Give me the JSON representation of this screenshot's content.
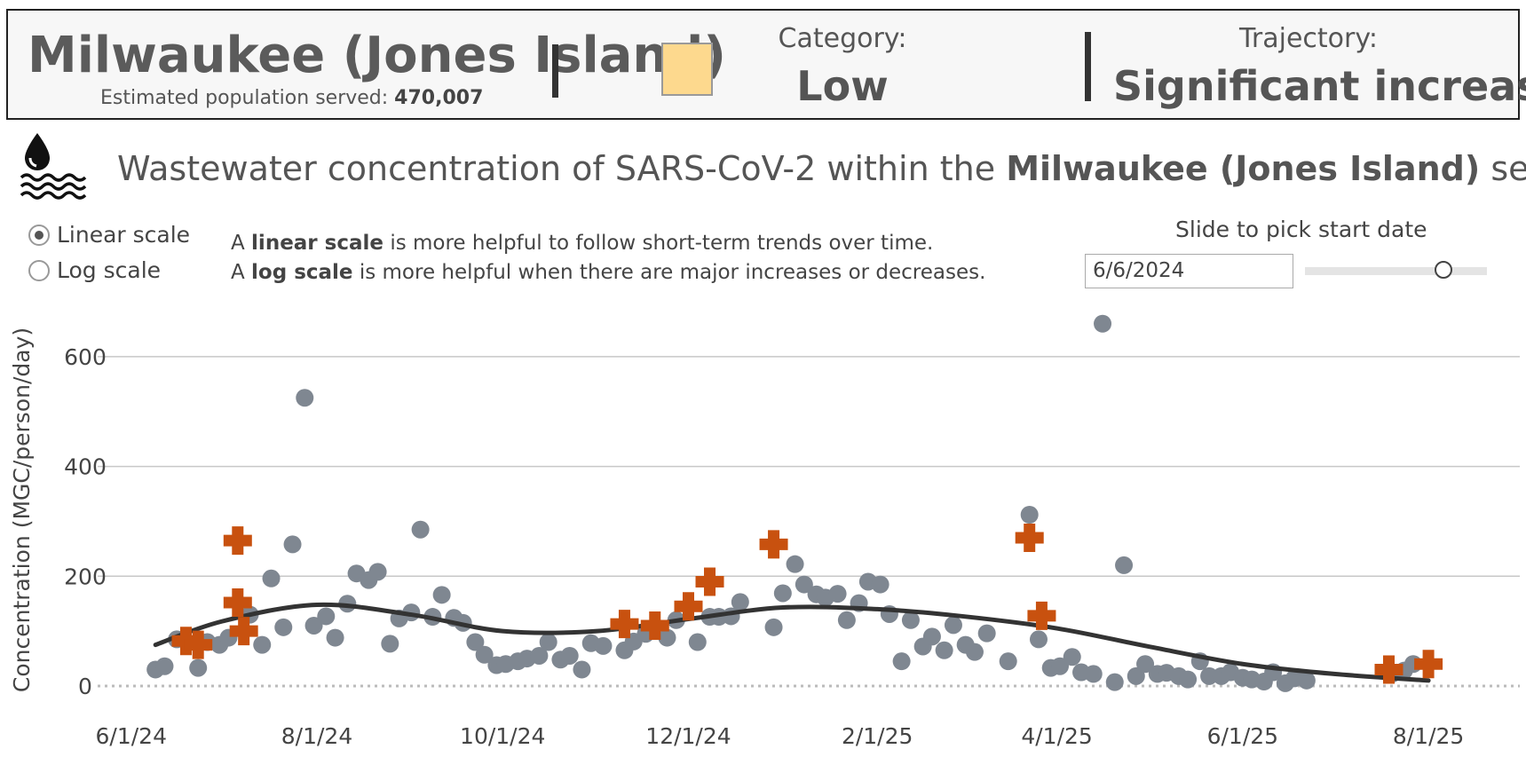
{
  "header": {
    "site_name": "Milwaukee (Jones Island)",
    "population_label": "Estimated population served:",
    "population_value": "470,007",
    "category_label": "Category:",
    "category_value": "Low",
    "category_color": "#fdd98e",
    "trajectory_label": "Trajectory:",
    "trajectory_value": "Significant increase"
  },
  "title": {
    "icon": "wastewater-drop-icon",
    "prefix": "Wastewater concentration of SARS-CoV-2 within the",
    "site": "Milwaukee (Jones Island)",
    "suffix": "sewershed"
  },
  "scale_options": {
    "linear_label": "Linear scale",
    "log_label": "Log scale",
    "selected": "linear"
  },
  "scale_help": {
    "linear_pre": "A",
    "linear_bold": "linear scale",
    "linear_post": "is more helpful to follow short-term trends over time.",
    "log_pre": "A",
    "log_bold": "log scale",
    "log_post": "is more helpful when there are major increases or decreases."
  },
  "date_picker": {
    "label": "Slide to pick start date",
    "value": "6/6/2024",
    "slider_position": 0.76
  },
  "colors": {
    "point": "#7f8791",
    "outlier": "#c8510f",
    "trend": "#333333",
    "grid": "#c8c8c8"
  },
  "chart_data": {
    "type": "scatter",
    "ylabel": "Concentration (MGC/person/day)",
    "ylim": [
      0,
      700
    ],
    "yticks": [
      0,
      200,
      400,
      600
    ],
    "xlim": [
      "2024-05-21",
      "2025-08-31"
    ],
    "xticks": [
      {
        "date": "2024-06-01",
        "label": "6/1/24"
      },
      {
        "date": "2024-08-01",
        "label": "8/1/24"
      },
      {
        "date": "2024-10-01",
        "label": "10/1/24"
      },
      {
        "date": "2024-12-01",
        "label": "12/1/24"
      },
      {
        "date": "2025-02-01",
        "label": "2/1/25"
      },
      {
        "date": "2025-04-01",
        "label": "4/1/25"
      },
      {
        "date": "2025-06-01",
        "label": "6/1/25"
      },
      {
        "date": "2025-08-01",
        "label": "8/1/25"
      }
    ],
    "series": [
      {
        "marker": "circle",
        "points": [
          [
            "2024-06-09",
            30
          ],
          [
            "2024-06-12",
            36
          ],
          [
            "2024-06-16",
            85
          ],
          [
            "2024-06-23",
            33
          ],
          [
            "2024-06-26",
            80
          ],
          [
            "2024-06-30",
            75
          ],
          [
            "2024-07-03",
            88
          ],
          [
            "2024-07-10",
            130
          ],
          [
            "2024-07-14",
            75
          ],
          [
            "2024-07-17",
            196
          ],
          [
            "2024-07-21",
            107
          ],
          [
            "2024-07-24",
            258
          ],
          [
            "2024-07-28",
            525
          ],
          [
            "2024-07-31",
            110
          ],
          [
            "2024-08-04",
            127
          ],
          [
            "2024-08-07",
            88
          ],
          [
            "2024-08-11",
            150
          ],
          [
            "2024-08-14",
            205
          ],
          [
            "2024-08-18",
            193
          ],
          [
            "2024-08-21",
            208
          ],
          [
            "2024-08-25",
            77
          ],
          [
            "2024-08-28",
            123
          ],
          [
            "2024-09-01",
            134
          ],
          [
            "2024-09-04",
            285
          ],
          [
            "2024-09-08",
            126
          ],
          [
            "2024-09-11",
            166
          ],
          [
            "2024-09-15",
            124
          ],
          [
            "2024-09-18",
            115
          ],
          [
            "2024-09-22",
            80
          ],
          [
            "2024-09-25",
            57
          ],
          [
            "2024-09-29",
            38
          ],
          [
            "2024-10-02",
            40
          ],
          [
            "2024-10-06",
            45
          ],
          [
            "2024-10-09",
            50
          ],
          [
            "2024-10-13",
            55
          ],
          [
            "2024-10-16",
            80
          ],
          [
            "2024-10-20",
            48
          ],
          [
            "2024-10-23",
            55
          ],
          [
            "2024-10-27",
            30
          ],
          [
            "2024-10-30",
            78
          ],
          [
            "2024-11-03",
            73
          ],
          [
            "2024-11-10",
            65
          ],
          [
            "2024-11-13",
            81
          ],
          [
            "2024-11-17",
            95
          ],
          [
            "2024-11-24",
            88
          ],
          [
            "2024-11-27",
            120
          ],
          [
            "2024-12-04",
            80
          ],
          [
            "2024-12-08",
            126
          ],
          [
            "2024-12-11",
            126
          ],
          [
            "2024-12-15",
            127
          ],
          [
            "2024-12-18",
            153
          ],
          [
            "2024-12-29",
            107
          ],
          [
            "2025-01-01",
            169
          ],
          [
            "2025-01-05",
            222
          ],
          [
            "2025-01-08",
            185
          ],
          [
            "2025-01-12",
            167
          ],
          [
            "2025-01-15",
            161
          ],
          [
            "2025-01-19",
            168
          ],
          [
            "2025-01-22",
            120
          ],
          [
            "2025-01-26",
            151
          ],
          [
            "2025-01-29",
            190
          ],
          [
            "2025-02-02",
            185
          ],
          [
            "2025-02-05",
            131
          ],
          [
            "2025-02-09",
            45
          ],
          [
            "2025-02-12",
            120
          ],
          [
            "2025-02-16",
            72
          ],
          [
            "2025-02-19",
            90
          ],
          [
            "2025-02-23",
            65
          ],
          [
            "2025-02-26",
            111
          ],
          [
            "2025-03-02",
            75
          ],
          [
            "2025-03-05",
            62
          ],
          [
            "2025-03-09",
            96
          ],
          [
            "2025-03-16",
            45
          ],
          [
            "2025-03-23",
            312
          ],
          [
            "2025-03-26",
            85
          ],
          [
            "2025-03-30",
            33
          ],
          [
            "2025-04-02",
            36
          ],
          [
            "2025-04-06",
            53
          ],
          [
            "2025-04-09",
            25
          ],
          [
            "2025-04-13",
            22
          ],
          [
            "2025-04-16",
            660
          ],
          [
            "2025-04-20",
            7
          ],
          [
            "2025-04-23",
            220
          ],
          [
            "2025-04-27",
            18
          ],
          [
            "2025-04-30",
            40
          ],
          [
            "2025-05-04",
            22
          ],
          [
            "2025-05-07",
            24
          ],
          [
            "2025-05-11",
            18
          ],
          [
            "2025-05-14",
            12
          ],
          [
            "2025-05-18",
            45
          ],
          [
            "2025-05-21",
            18
          ],
          [
            "2025-05-25",
            18
          ],
          [
            "2025-05-28",
            25
          ],
          [
            "2025-06-01",
            15
          ],
          [
            "2025-06-04",
            12
          ],
          [
            "2025-06-08",
            8
          ],
          [
            "2025-06-11",
            25
          ],
          [
            "2025-06-15",
            5
          ],
          [
            "2025-06-18",
            14
          ],
          [
            "2025-06-22",
            10
          ],
          [
            "2025-07-20",
            22
          ],
          [
            "2025-07-24",
            28
          ],
          [
            "2025-07-27",
            40
          ]
        ]
      },
      {
        "marker": "cross",
        "points": [
          [
            "2024-06-19",
            82
          ],
          [
            "2024-06-23",
            75
          ],
          [
            "2024-07-06",
            265
          ],
          [
            "2024-07-06",
            152
          ],
          [
            "2024-07-08",
            100
          ],
          [
            "2024-11-10",
            113
          ],
          [
            "2024-11-20",
            110
          ],
          [
            "2024-12-01",
            145
          ],
          [
            "2024-12-08",
            190
          ],
          [
            "2024-12-29",
            258
          ],
          [
            "2025-03-23",
            270
          ],
          [
            "2025-03-27",
            128
          ],
          [
            "2025-07-19",
            30
          ],
          [
            "2025-08-01",
            40
          ]
        ]
      },
      {
        "marker": "line",
        "points": [
          [
            "2024-06-09",
            75
          ],
          [
            "2024-07-01",
            118
          ],
          [
            "2024-08-01",
            148
          ],
          [
            "2024-09-01",
            130
          ],
          [
            "2024-10-01",
            100
          ],
          [
            "2024-11-01",
            100
          ],
          [
            "2024-12-01",
            122
          ],
          [
            "2025-01-01",
            143
          ],
          [
            "2025-02-01",
            140
          ],
          [
            "2025-03-01",
            127
          ],
          [
            "2025-04-01",
            105
          ],
          [
            "2025-05-01",
            72
          ],
          [
            "2025-06-01",
            40
          ],
          [
            "2025-07-01",
            22
          ],
          [
            "2025-08-01",
            10
          ]
        ]
      }
    ]
  }
}
